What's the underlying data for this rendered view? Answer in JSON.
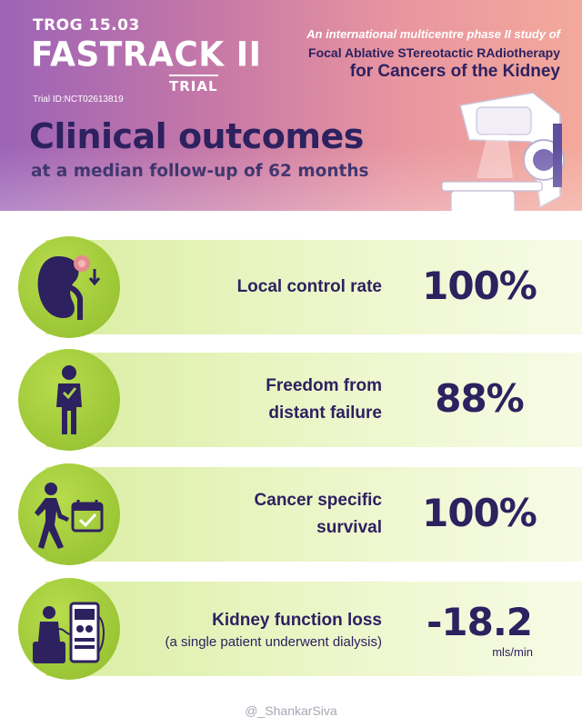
{
  "header": {
    "trial_code": "TROG 15.03",
    "trial_name": "FASTRACK II",
    "trial_word": "TRIAL",
    "trial_id": "Trial ID:NCT02613819",
    "study_intro": "An international multicentre phase II study of",
    "study_line1": "Focal Ablative STereotactic RAdiotherapy",
    "study_line2": "for Cancers of the Kidney",
    "title": "Clinical outcomes",
    "subtitle": "at a median follow-up of 62 months"
  },
  "outcomes": [
    {
      "label": "Local control rate",
      "value": "100%",
      "icon": "kidney-tumor-icon"
    },
    {
      "label_line1": "Freedom from",
      "label_line2": "distant failure",
      "value": "88%",
      "icon": "person-check-icon"
    },
    {
      "label_line1": "Cancer specific",
      "label_line2": "survival",
      "value": "100%",
      "icon": "walking-calendar-icon"
    },
    {
      "label": "Kidney function loss",
      "sublabel": "(a single patient underwent dialysis)",
      "value": "-18.2",
      "unit": "mls/min",
      "icon": "dialysis-icon"
    }
  ],
  "credit": "@_ShankarSiva",
  "colors": {
    "navy": "#2d2160",
    "green_circle": "#9cc636",
    "band_light": "#eaf5c4",
    "header_left": "#9c63b7",
    "header_right": "#f3a99b"
  }
}
